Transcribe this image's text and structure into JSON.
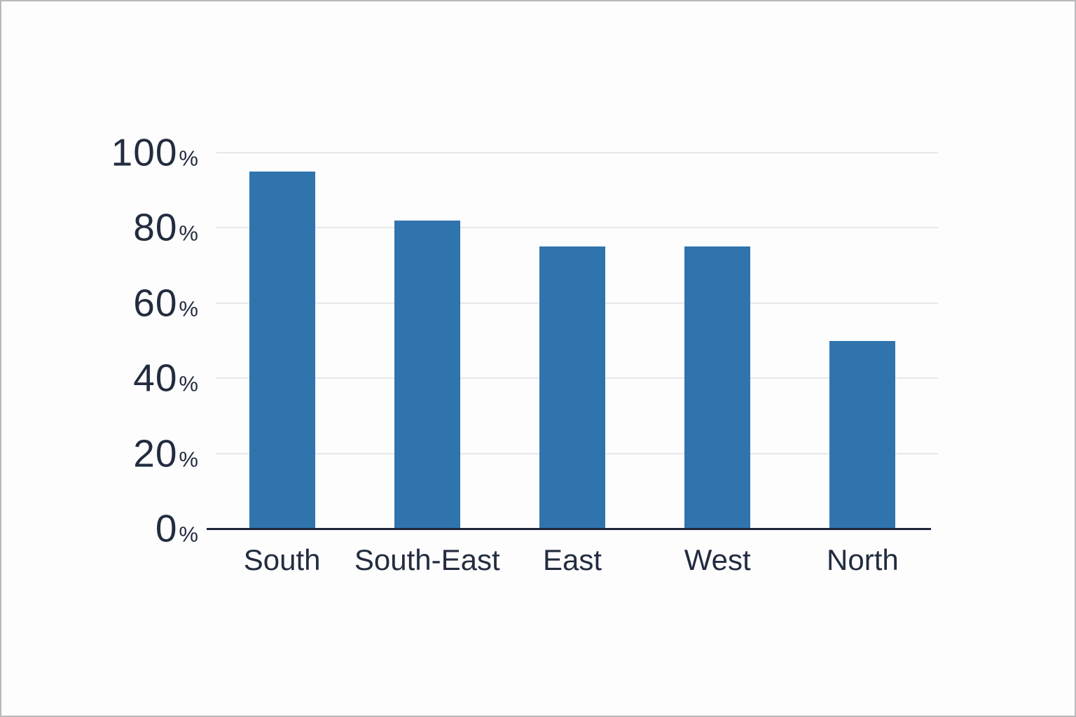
{
  "page": {
    "background_color": "#fdfdfe",
    "border_color": "#b9b9bb"
  },
  "chart_data": {
    "type": "bar",
    "title": "",
    "xlabel": "",
    "ylabel": "",
    "categories": [
      "South",
      "South-East",
      "East",
      "West",
      "North"
    ],
    "values": [
      95,
      82,
      75,
      75,
      50
    ],
    "value_unit": "%",
    "ylim": [
      0,
      100
    ],
    "yticks": [
      0,
      20,
      40,
      60,
      80,
      100
    ],
    "ytick_suffix": "%",
    "grid": "horizontal",
    "legend": "none",
    "bar_color": "#3074ad",
    "gridline_color": "#e7e7ea",
    "axis_line_color": "#1d2638",
    "label_color": "#232c3f"
  }
}
